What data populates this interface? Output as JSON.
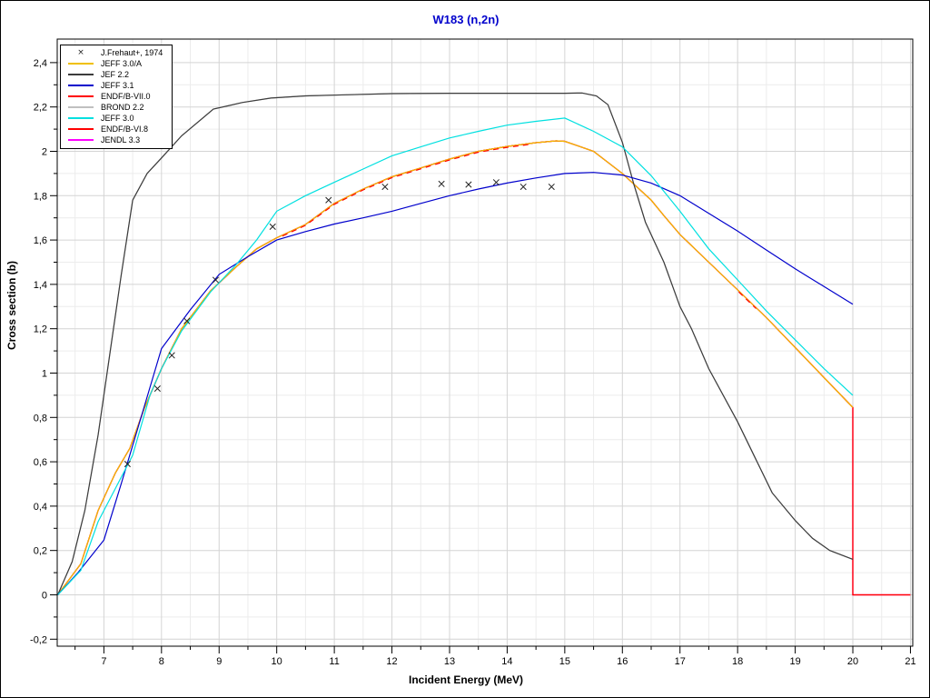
{
  "title": {
    "text": "W183 (n,2n)",
    "color": "#0000cc"
  },
  "axes": {
    "xlabel": "Incident Energy (MeV)",
    "ylabel": "Cross section (b)",
    "x_major_ticks": [
      {
        "v": 7,
        "label": "7"
      },
      {
        "v": 8,
        "label": "8"
      },
      {
        "v": 9,
        "label": "9"
      },
      {
        "v": 10,
        "label": "10"
      },
      {
        "v": 11,
        "label": "11"
      },
      {
        "v": 12,
        "label": "12"
      },
      {
        "v": 13,
        "label": "13"
      },
      {
        "v": 14,
        "label": "14"
      },
      {
        "v": 15,
        "label": "15"
      },
      {
        "v": 16,
        "label": "16"
      },
      {
        "v": 17,
        "label": "17"
      },
      {
        "v": 18,
        "label": "18"
      },
      {
        "v": 19,
        "label": "19"
      },
      {
        "v": 20,
        "label": "20"
      },
      {
        "v": 21,
        "label": "21"
      }
    ],
    "x_minor_ticks": [
      6.5,
      7.5,
      8.5,
      9.5,
      10.5,
      11.5,
      12.5,
      13.5,
      14.5,
      15.5,
      16.5,
      17.5,
      18.5,
      19.5,
      20.5
    ],
    "y_major_ticks": [
      {
        "v": 2.4,
        "label": "2,4"
      },
      {
        "v": 2.2,
        "label": "2,2"
      },
      {
        "v": 2.0,
        "label": "2"
      },
      {
        "v": 1.8,
        "label": "1,8"
      },
      {
        "v": 1.6,
        "label": "1,6"
      },
      {
        "v": 1.4,
        "label": "1,4"
      },
      {
        "v": 1.2,
        "label": "1,2"
      },
      {
        "v": 1.0,
        "label": "1"
      },
      {
        "v": 0.8,
        "label": "0,8"
      },
      {
        "v": 0.6,
        "label": "0,6"
      },
      {
        "v": 0.4,
        "label": "0,4"
      },
      {
        "v": 0.2,
        "label": "0,2"
      },
      {
        "v": 0.0,
        "label": "0"
      },
      {
        "v": -0.2,
        "label": "-0,2"
      }
    ],
    "y_minor_ticks": [
      2.3,
      2.1,
      1.9,
      1.7,
      1.5,
      1.3,
      1.1,
      0.9,
      0.7,
      0.5,
      0.3,
      0.1,
      -0.1
    ]
  },
  "legend": {
    "items": [
      {
        "label": "J.Frehaut+, 1974",
        "color": "#222222",
        "swatch": "x-marker"
      },
      {
        "label": "JEFF 3.0/A",
        "color": "#f0c000",
        "swatch": "line"
      },
      {
        "label": "JEF 2.2",
        "color": "#3c3c3c",
        "swatch": "line"
      },
      {
        "label": "JEFF 3.1",
        "color": "#0000cc",
        "swatch": "line"
      },
      {
        "label": "ENDF/B-VII.0",
        "color": "#ff0000",
        "swatch": "line"
      },
      {
        "label": "BROND 2.2",
        "color": "#c0c0c0",
        "swatch": "line"
      },
      {
        "label": "JEFF 3.0",
        "color": "#00e0e0",
        "swatch": "line"
      },
      {
        "label": "ENDF/B-VI.8",
        "color": "#ff0000",
        "swatch": "line"
      },
      {
        "label": "JENDL 3.3",
        "color": "#ff00ff",
        "swatch": "line"
      }
    ]
  },
  "chart_data": {
    "type": "line",
    "title": "W183 (n,2n)",
    "xlabel": "Incident Energy (MeV)",
    "ylabel": "Cross section (b)",
    "xlim": [
      6.19,
      21.04
    ],
    "ylim": [
      -0.2316,
      2.5061
    ],
    "grid": true,
    "legend_position": "top-left",
    "grid_minor_color": "#ececec",
    "grid_major_color": "#d4d4d4",
    "paths": {
      "upper_mid": [
        [
          6.2,
          0
        ],
        [
          6.6,
          0.14
        ],
        [
          6.9,
          0.38
        ],
        [
          7.2,
          0.55
        ],
        [
          7.45,
          0.66
        ],
        [
          7.7,
          0.84
        ],
        [
          8.0,
          1.02
        ],
        [
          8.35,
          1.2
        ],
        [
          8.85,
          1.37
        ],
        [
          9.3,
          1.48
        ],
        [
          9.65,
          1.56
        ],
        [
          10.0,
          1.61
        ],
        [
          10.5,
          1.67
        ],
        [
          11.0,
          1.765
        ],
        [
          11.5,
          1.83
        ],
        [
          12.0,
          1.885
        ],
        [
          12.5,
          1.925
        ],
        [
          13.0,
          1.965
        ],
        [
          13.5,
          2.0
        ],
        [
          14.0,
          2.022
        ],
        [
          14.5,
          2.039
        ],
        [
          14.85,
          2.047
        ],
        [
          15.0,
          2.045
        ],
        [
          15.5,
          2.0
        ],
        [
          16.0,
          1.9
        ],
        [
          16.5,
          1.78
        ],
        [
          16.72,
          1.71
        ],
        [
          17.0,
          1.625
        ],
        [
          17.5,
          1.5
        ],
        [
          18.0,
          1.375
        ],
        [
          18.5,
          1.25
        ],
        [
          19.0,
          1.115
        ],
        [
          19.5,
          0.98
        ],
        [
          20.0,
          0.845
        ]
      ],
      "endf_tail": [
        [
          20.0,
          0.0
        ],
        [
          21.0,
          0.0
        ]
      ],
      "jef22": [
        [
          6.2,
          0
        ],
        [
          6.45,
          0.15
        ],
        [
          6.67,
          0.38
        ],
        [
          6.9,
          0.72
        ],
        [
          7.1,
          1.08
        ],
        [
          7.3,
          1.44
        ],
        [
          7.5,
          1.78
        ],
        [
          7.75,
          1.9
        ],
        [
          8.0,
          1.97
        ],
        [
          8.35,
          2.07
        ],
        [
          8.9,
          2.19
        ],
        [
          9.4,
          2.22
        ],
        [
          9.9,
          2.24
        ],
        [
          10.5,
          2.25
        ],
        [
          11.2,
          2.255
        ],
        [
          12.0,
          2.26
        ],
        [
          13.0,
          2.262
        ],
        [
          14.0,
          2.262
        ],
        [
          15.0,
          2.262
        ],
        [
          15.3,
          2.263
        ],
        [
          15.55,
          2.25
        ],
        [
          15.75,
          2.21
        ],
        [
          16.0,
          2.04
        ],
        [
          16.2,
          1.85
        ],
        [
          16.4,
          1.68
        ],
        [
          16.72,
          1.5
        ],
        [
          17.0,
          1.3
        ],
        [
          17.2,
          1.2
        ],
        [
          17.5,
          1.02
        ],
        [
          18.0,
          0.78
        ],
        [
          18.3,
          0.62
        ],
        [
          18.6,
          0.46
        ],
        [
          19.0,
          0.335
        ],
        [
          19.3,
          0.255
        ],
        [
          19.6,
          0.2
        ],
        [
          20.0,
          0.16
        ]
      ],
      "jeff31": [
        [
          6.2,
          0
        ],
        [
          6.55,
          0.1
        ],
        [
          7.0,
          0.247
        ],
        [
          7.3,
          0.5
        ],
        [
          7.6,
          0.76
        ],
        [
          8.0,
          1.11
        ],
        [
          8.5,
          1.285
        ],
        [
          9.0,
          1.445
        ],
        [
          9.5,
          1.525
        ],
        [
          10.0,
          1.6
        ],
        [
          10.5,
          1.638
        ],
        [
          11.0,
          1.672
        ],
        [
          11.5,
          1.7
        ],
        [
          12.0,
          1.73
        ],
        [
          12.5,
          1.765
        ],
        [
          13.0,
          1.8
        ],
        [
          13.5,
          1.83
        ],
        [
          14.0,
          1.857
        ],
        [
          14.5,
          1.88
        ],
        [
          15.0,
          1.9
        ],
        [
          15.5,
          1.905
        ],
        [
          16.0,
          1.893
        ],
        [
          16.5,
          1.857
        ],
        [
          17.0,
          1.8
        ],
        [
          17.5,
          1.72
        ],
        [
          18.0,
          1.64
        ],
        [
          18.5,
          1.555
        ],
        [
          19.0,
          1.47
        ],
        [
          19.5,
          1.39
        ],
        [
          20.0,
          1.31
        ]
      ],
      "jeff30": [
        [
          6.2,
          0
        ],
        [
          6.6,
          0.11
        ],
        [
          6.9,
          0.33
        ],
        [
          7.2,
          0.48
        ],
        [
          7.5,
          0.63
        ],
        [
          7.8,
          0.9
        ],
        [
          8.0,
          1.02
        ],
        [
          8.35,
          1.19
        ],
        [
          8.85,
          1.365
        ],
        [
          9.3,
          1.49
        ],
        [
          9.65,
          1.6
        ],
        [
          10.0,
          1.73
        ],
        [
          10.5,
          1.8
        ],
        [
          11.0,
          1.86
        ],
        [
          11.5,
          1.92
        ],
        [
          12.0,
          1.98
        ],
        [
          12.5,
          2.02
        ],
        [
          13.0,
          2.06
        ],
        [
          13.5,
          2.09
        ],
        [
          14.0,
          2.118
        ],
        [
          14.5,
          2.135
        ],
        [
          15.0,
          2.15
        ],
        [
          15.5,
          2.09
        ],
        [
          16.0,
          2.02
        ],
        [
          16.5,
          1.89
        ],
        [
          17.0,
          1.73
        ],
        [
          17.5,
          1.56
        ],
        [
          18.0,
          1.42
        ],
        [
          18.5,
          1.28
        ],
        [
          19.0,
          1.15
        ],
        [
          19.5,
          1.02
        ],
        [
          20.0,
          0.9
        ]
      ]
    },
    "series": [
      {
        "name": "BROND 2.2",
        "color": "#c0c0c0",
        "paths": [
          "jef22"
        ],
        "note": "hidden beneath JEF 2.2"
      },
      {
        "name": "JENDL 3.3",
        "color": "#ff00ff",
        "paths": [
          "upper_mid",
          "endf_tail"
        ],
        "note": "hidden beneath ENDF/B curves"
      },
      {
        "name": "ENDF/B-VII.0",
        "color": "#ff0000",
        "paths": [
          "upper_mid",
          "endf_tail"
        ]
      },
      {
        "name": "ENDF/B-VI.8",
        "color": "#ff0000",
        "paths": [
          "upper_mid",
          "endf_tail"
        ]
      },
      {
        "name": "JEFF 3.0/A",
        "color": "#f0c000",
        "paths": [
          "upper_mid"
        ]
      },
      {
        "name": "JEF 2.2",
        "color": "#3c3c3c",
        "paths": [
          "jef22"
        ]
      },
      {
        "name": "JEFF 3.1",
        "color": "#0000cc",
        "paths": [
          "jeff31"
        ]
      },
      {
        "name": "JEFF 3.0",
        "color": "#00e0e0",
        "paths": [
          "jeff30"
        ]
      }
    ],
    "overlay_dashes": {
      "color": "#ff0000",
      "path": "upper_mid",
      "ranges": [
        [
          10.1,
          14.4
        ],
        [
          18.02,
          18.32
        ]
      ],
      "dash": [
        6,
        5
      ]
    },
    "scatter": {
      "name": "J.Frehaut+, 1974",
      "marker": "x",
      "color": "#222222",
      "points": [
        [
          7.41,
          0.59
        ],
        [
          7.93,
          0.93
        ],
        [
          8.18,
          1.08
        ],
        [
          8.44,
          1.235
        ],
        [
          8.94,
          1.42
        ],
        [
          9.93,
          1.66
        ],
        [
          10.9,
          1.78
        ],
        [
          11.88,
          1.84
        ],
        [
          12.86,
          1.853
        ],
        [
          13.33,
          1.85
        ],
        [
          13.81,
          1.86
        ],
        [
          14.28,
          1.84
        ],
        [
          14.77,
          1.84
        ]
      ]
    }
  }
}
